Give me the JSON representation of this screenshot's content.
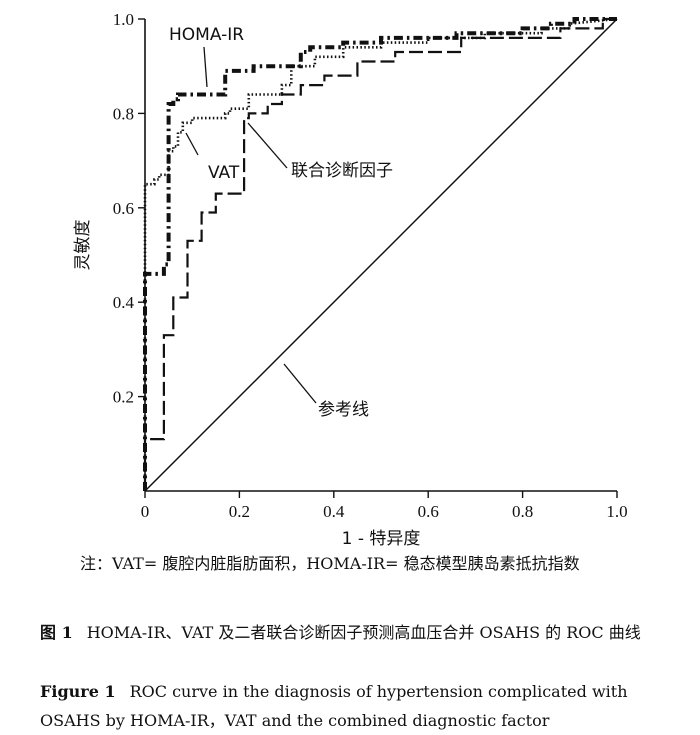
{
  "chart_data": {
    "type": "line",
    "xlabel": "1 - 特异度",
    "ylabel": "灵敏度",
    "xlim": [
      0,
      1.0
    ],
    "ylim": [
      0,
      1.0
    ],
    "x_ticks": [
      0,
      0.2,
      0.4,
      0.6,
      0.8,
      1.0
    ],
    "x_tick_labels": [
      "0",
      "0.2",
      "0.4",
      "0.6",
      "0.8",
      "1.0"
    ],
    "y_ticks": [
      0.2,
      0.4,
      0.6,
      0.8,
      1.0
    ],
    "y_tick_labels": [
      "0.2",
      "0.4",
      "0.6",
      "0.8",
      "1.0"
    ],
    "grid": false,
    "series": [
      {
        "name": "HOMA-IR",
        "style": "dash-dot",
        "x": [
          0,
          0,
          0.04,
          0.04,
          0.05,
          0.05,
          0.06,
          0.06,
          0.07,
          0.07,
          0.11,
          0.11,
          0.17,
          0.17,
          0.23,
          0.23,
          0.33,
          0.33,
          0.35,
          0.35,
          0.42,
          0.42,
          0.5,
          0.5,
          0.66,
          0.66,
          0.8,
          0.8,
          0.86,
          0.86,
          0.91,
          0.91,
          1.0
        ],
        "y": [
          0,
          0.46,
          0.46,
          0.48,
          0.48,
          0.82,
          0.82,
          0.83,
          0.83,
          0.84,
          0.84,
          0.84,
          0.84,
          0.89,
          0.89,
          0.9,
          0.9,
          0.93,
          0.93,
          0.94,
          0.94,
          0.95,
          0.95,
          0.96,
          0.96,
          0.97,
          0.97,
          0.98,
          0.98,
          0.99,
          0.99,
          1.0,
          1.0
        ]
      },
      {
        "name": "VAT",
        "style": "dotted",
        "x": [
          0,
          0,
          0.02,
          0.02,
          0.03,
          0.03,
          0.05,
          0.05,
          0.06,
          0.06,
          0.07,
          0.07,
          0.08,
          0.08,
          0.1,
          0.1,
          0.17,
          0.17,
          0.18,
          0.18,
          0.22,
          0.22,
          0.29,
          0.29,
          0.31,
          0.31,
          0.36,
          0.36,
          0.42,
          0.42,
          0.5,
          0.5,
          0.6,
          0.6,
          0.72,
          0.72,
          0.84,
          0.84,
          0.9,
          0.9,
          1.0
        ],
        "y": [
          0,
          0.65,
          0.65,
          0.66,
          0.66,
          0.67,
          0.67,
          0.72,
          0.72,
          0.73,
          0.73,
          0.76,
          0.76,
          0.78,
          0.78,
          0.79,
          0.79,
          0.8,
          0.8,
          0.81,
          0.81,
          0.84,
          0.84,
          0.86,
          0.86,
          0.9,
          0.9,
          0.92,
          0.92,
          0.94,
          0.94,
          0.95,
          0.95,
          0.96,
          0.96,
          0.97,
          0.97,
          0.98,
          0.98,
          0.99,
          1.0
        ]
      },
      {
        "name": "联合诊断因子",
        "style": "dashed",
        "x": [
          0,
          0,
          0.04,
          0.04,
          0.06,
          0.06,
          0.09,
          0.09,
          0.12,
          0.12,
          0.15,
          0.15,
          0.21,
          0.21,
          0.22,
          0.22,
          0.26,
          0.26,
          0.29,
          0.29,
          0.33,
          0.33,
          0.38,
          0.38,
          0.45,
          0.45,
          0.53,
          0.53,
          0.67,
          0.67,
          0.88,
          0.88,
          0.97,
          0.97,
          1.0
        ],
        "y": [
          0,
          0.11,
          0.11,
          0.33,
          0.33,
          0.41,
          0.41,
          0.53,
          0.53,
          0.59,
          0.59,
          0.63,
          0.63,
          0.79,
          0.79,
          0.8,
          0.8,
          0.82,
          0.82,
          0.84,
          0.84,
          0.86,
          0.86,
          0.88,
          0.88,
          0.91,
          0.91,
          0.93,
          0.93,
          0.96,
          0.96,
          0.98,
          0.98,
          1.0,
          1.0
        ]
      },
      {
        "name": "参考线",
        "style": "solid",
        "x": [
          0,
          1.0
        ],
        "y": [
          0,
          1.0
        ]
      }
    ]
  },
  "caption": {
    "note": "注：VAT= 腹腔内脏脂肪面积，HOMA-IR= 稳态模型胰岛素抵抗指数",
    "cn_label": "图 1",
    "cn_text": "HOMA-IR、VAT 及二者联合诊断因子预测高血压合并 OSAHS 的 ROC 曲线",
    "en_label": "Figure 1",
    "en_text": "ROC curve in the diagnosis of hypertension complicated with OSAHS by HOMA-IR，VAT and the combined diagnostic factor"
  }
}
